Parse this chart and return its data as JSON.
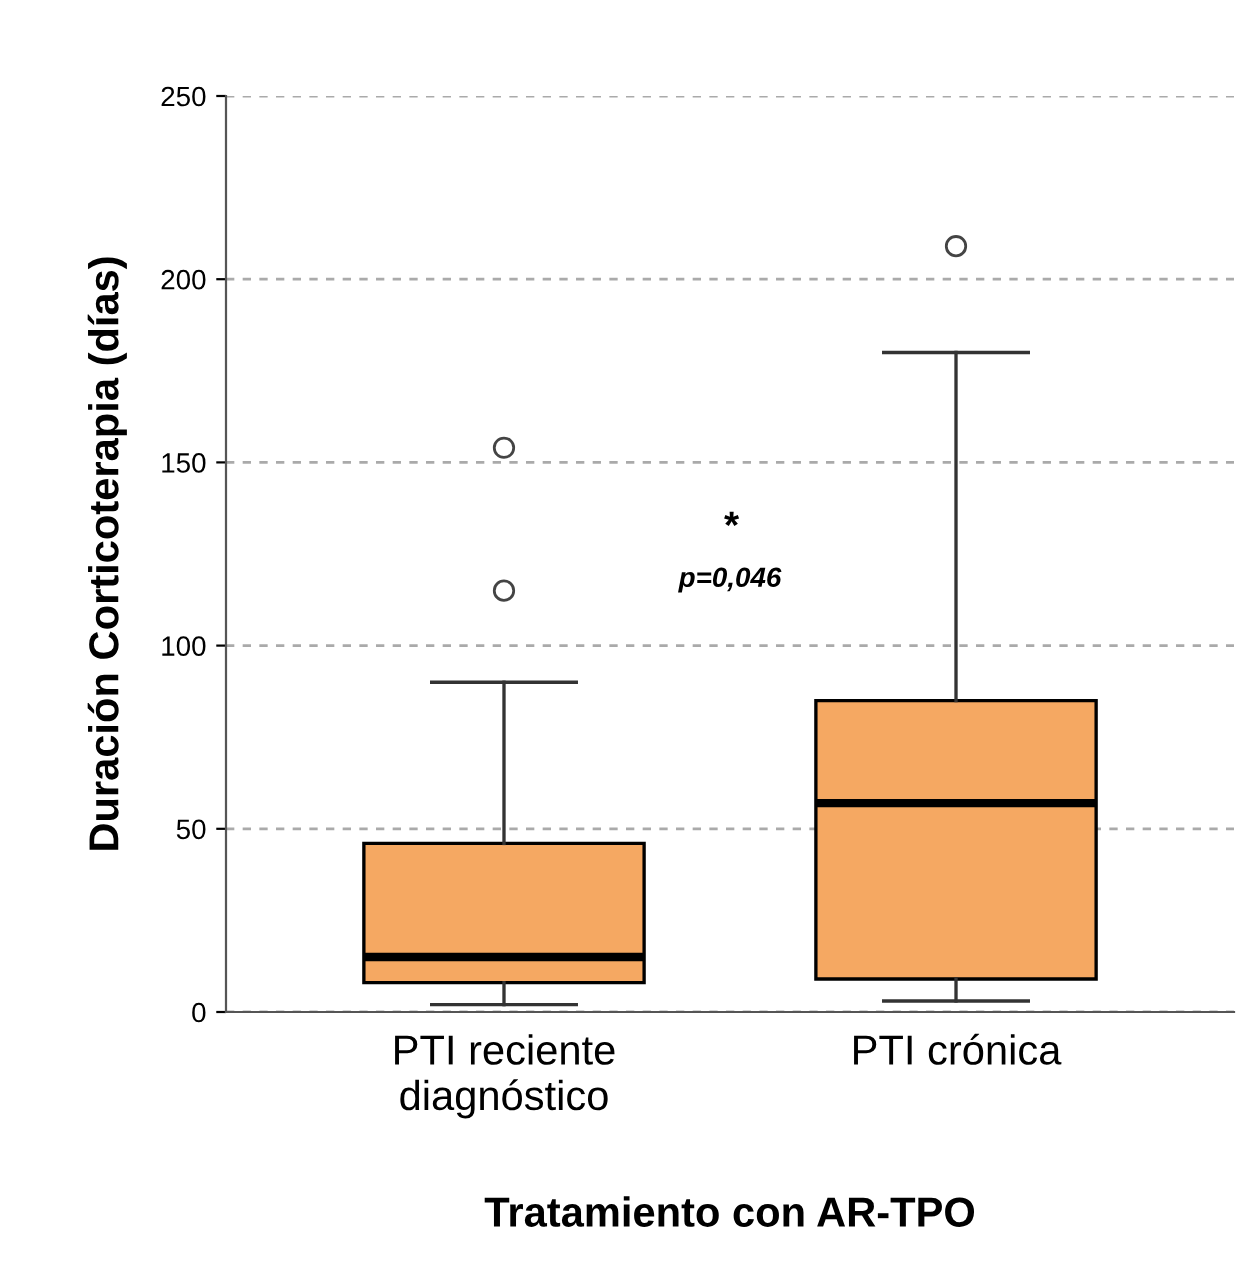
{
  "chart_data": {
    "type": "box",
    "xlabel": "Tratamiento con AR-TPO",
    "ylabel": "Duración Corticoterapia (días)",
    "categories": [
      "PTI reciente\ndiagnóstico",
      "PTI crónica"
    ],
    "boxes": [
      {
        "low": 2,
        "q1": 8,
        "median": 15,
        "q3": 46,
        "high": 90,
        "outliers": [
          115,
          154
        ]
      },
      {
        "low": 3,
        "q1": 9,
        "median": 57,
        "q3": 85,
        "high": 180,
        "outliers": [
          209
        ]
      }
    ],
    "color": "#f5a862",
    "ylim": [
      0,
      250
    ],
    "yticks": [
      0,
      50,
      100,
      150,
      200,
      250
    ],
    "grid": "y",
    "annotations": [
      "*",
      "p=0,046"
    ]
  }
}
